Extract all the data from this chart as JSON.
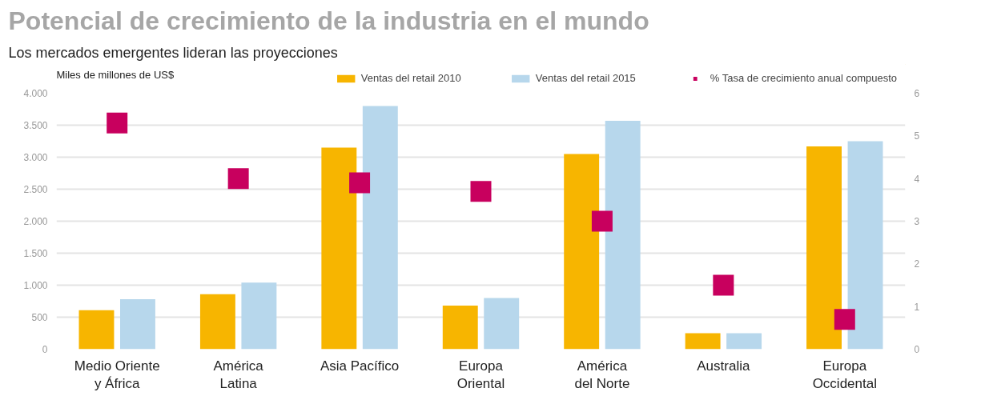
{
  "chart_data": {
    "type": "bar",
    "title": "Potencial de crecimiento de la industria en el mundo",
    "subtitle": "Los mercados emergentes lideran las proyecciones",
    "ylabel": "Miles de millones de US$",
    "categories": [
      "Medio Oriente\ny África",
      "América\nLatina",
      "Asia Pacífico",
      "Europa\nOriental",
      "América\ndel Norte",
      "Australia",
      "Europa\nOccidental"
    ],
    "series": [
      {
        "name": "Ventas del retail 2010",
        "color": "#f7b500",
        "values": [
          610,
          860,
          3150,
          680,
          3050,
          250,
          3170
        ]
      },
      {
        "name": "Ventas del retail 2015",
        "color": "#b7d7ec",
        "values": [
          780,
          1040,
          3800,
          800,
          3570,
          250,
          3250
        ]
      },
      {
        "name": "% Tasa de crecimiento anual compuesto",
        "type": "scatter",
        "axis": "y2",
        "marker": "square",
        "color": "#c8005e",
        "values": [
          5.3,
          4.0,
          3.9,
          3.7,
          3.0,
          1.5,
          0.7
        ]
      }
    ],
    "ylim": [
      0,
      4000
    ],
    "yticks": [
      {
        "value": 0,
        "label": "0"
      },
      {
        "value": 500,
        "label": "500"
      },
      {
        "value": 1000,
        "label": "1.000"
      },
      {
        "value": 1500,
        "label": "1.500"
      },
      {
        "value": 2000,
        "label": "2.000"
      },
      {
        "value": 2500,
        "label": "2.500"
      },
      {
        "value": 3000,
        "label": "3.000"
      },
      {
        "value": 3500,
        "label": "3.500"
      },
      {
        "value": 4000,
        "label": "4.000"
      }
    ],
    "y2lim": [
      0,
      6
    ],
    "y2ticks": [
      0,
      1,
      2,
      3,
      4,
      5,
      6
    ],
    "grid": "y",
    "legend": "top"
  }
}
